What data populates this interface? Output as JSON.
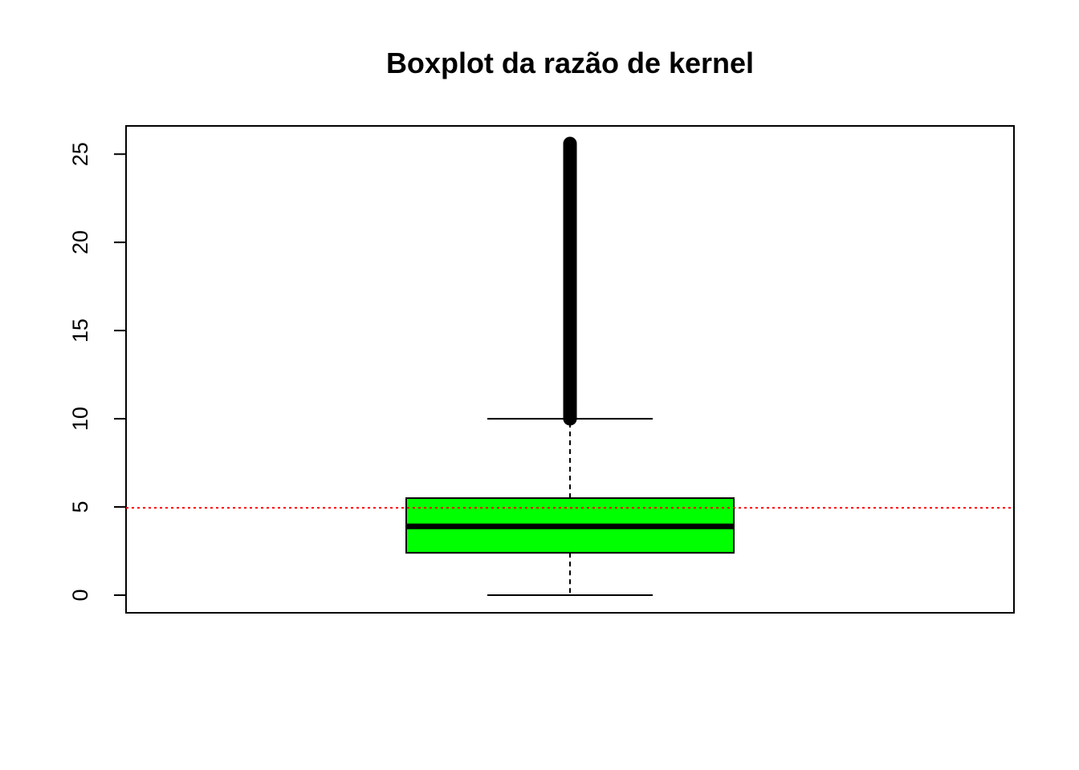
{
  "chart_data": {
    "type": "boxplot",
    "title": "Boxplot da razão de kernel",
    "xlabel": "",
    "ylabel": "",
    "ylim": [
      -1.0,
      26.6
    ],
    "y_ticks": [
      0,
      5,
      10,
      15,
      20,
      25
    ],
    "y_tick_labels": [
      "0",
      "5",
      "10",
      "15",
      "20",
      "25"
    ],
    "grid": false,
    "legend": "none",
    "box": {
      "whisker_low": 0.0,
      "q1": 2.4,
      "median": 3.9,
      "q3": 5.5,
      "whisker_high": 10.0,
      "outliers_range": [
        10.0,
        25.6
      ],
      "fill_color": "#00ff00"
    },
    "reference_line": {
      "y": 4.95,
      "color": "#ff0000",
      "style": "dotted"
    }
  }
}
